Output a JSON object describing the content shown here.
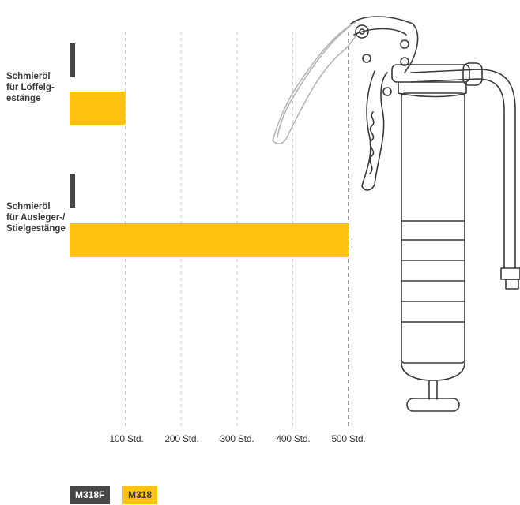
{
  "chart_data": {
    "type": "bar",
    "orientation": "horizontal",
    "categories": [
      "Schmieröl\nfür Löffelg-\nestänge",
      "Schmieröl\nfür Ausleger-/\nStielgestänge"
    ],
    "series": [
      {
        "name": "M318F",
        "color": "#474747",
        "values": [
          10,
          10
        ]
      },
      {
        "name": "M318",
        "color": "#ffc20e",
        "values": [
          100,
          500
        ]
      }
    ],
    "x_ticks": [
      {
        "value": 100,
        "label": "100 Std."
      },
      {
        "value": 200,
        "label": "200 Std."
      },
      {
        "value": 300,
        "label": "300 Std."
      },
      {
        "value": 400,
        "label": "400 Std."
      },
      {
        "value": 500,
        "label": "500 Std."
      }
    ],
    "xlim": [
      0,
      500
    ],
    "grid": true,
    "legend": "bottom-left",
    "title": "",
    "xlabel": "",
    "ylabel": ""
  },
  "illustration": {
    "icon": "grease-gun-icon"
  }
}
